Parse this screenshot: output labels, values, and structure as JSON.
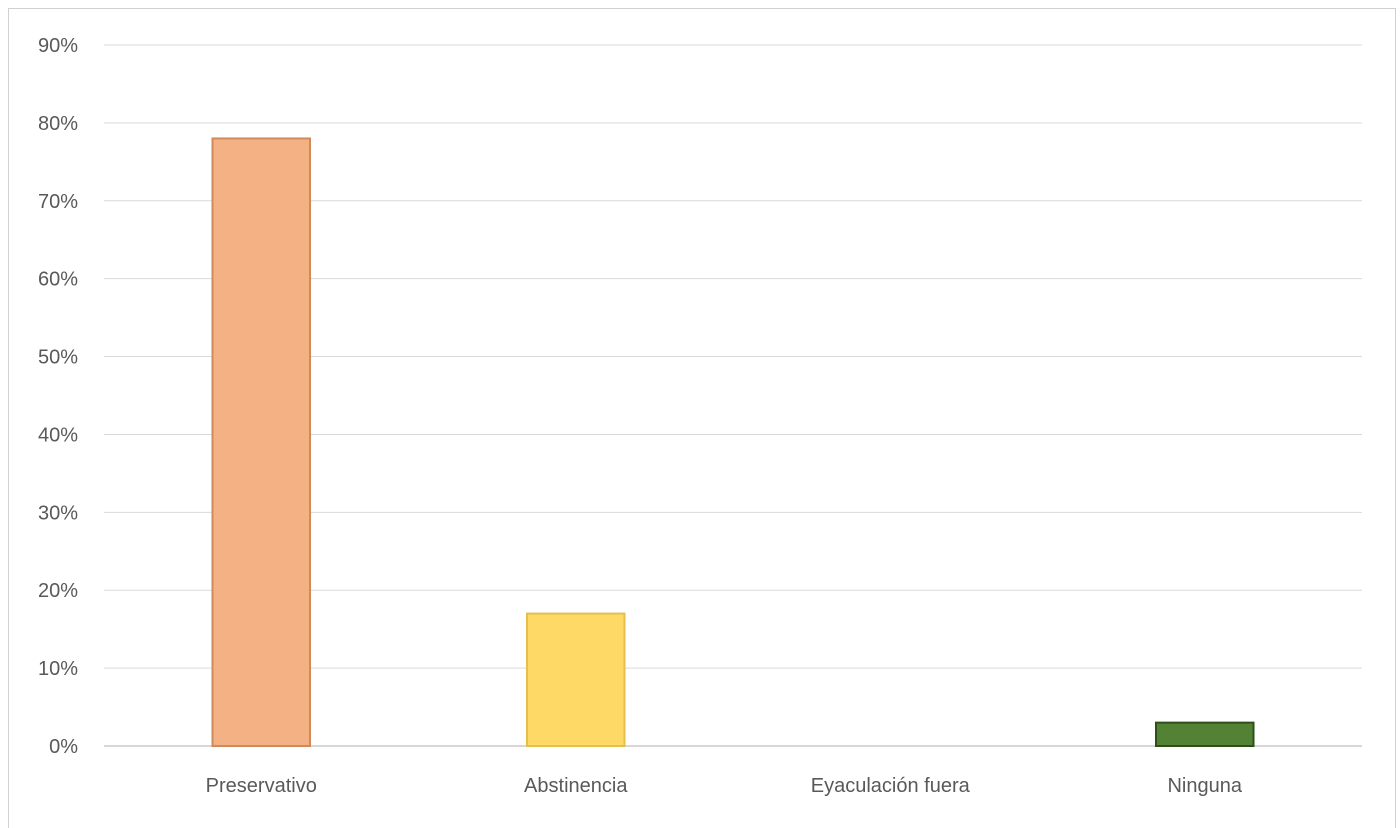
{
  "chart_data": {
    "type": "bar",
    "title": "",
    "xlabel": "",
    "ylabel": "",
    "categories": [
      "Preservativo",
      "Abstinencia",
      "Eyaculación fuera",
      "Ninguna"
    ],
    "values": [
      0.78,
      0.17,
      0.0,
      0.03
    ],
    "ylim": [
      0,
      0.9
    ],
    "yticks": [
      0,
      0.1,
      0.2,
      0.3,
      0.4,
      0.5,
      0.6,
      0.7,
      0.8,
      0.9
    ],
    "ytick_labels": [
      "0%",
      "10%",
      "20%",
      "30%",
      "40%",
      "50%",
      "60%",
      "70%",
      "80%",
      "90%"
    ],
    "grid": true,
    "legend": "none",
    "colors": [
      {
        "fill": "#f4b183",
        "stroke": "#d08a5c"
      },
      {
        "fill": "#ffd966",
        "stroke": "#e6bf4a"
      },
      {
        "fill": "#a9d18e",
        "stroke": "#7fae62"
      },
      {
        "fill": "#548235",
        "stroke": "#2e4e1a"
      }
    ]
  }
}
